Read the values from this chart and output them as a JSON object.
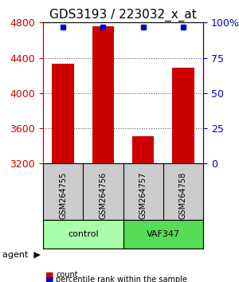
{
  "title": "GDS3193 / 223032_x_at",
  "samples": [
    "GSM264755",
    "GSM264756",
    "GSM264757",
    "GSM264758"
  ],
  "counts": [
    4330,
    4760,
    3510,
    4290
  ],
  "percentiles": [
    99,
    99,
    99,
    99
  ],
  "ylim": [
    3200,
    4800
  ],
  "yticks_left": [
    3200,
    3600,
    4000,
    4400,
    4800
  ],
  "yticks_right": [
    0,
    25,
    50,
    75,
    100
  ],
  "bar_color": "#cc0000",
  "dot_color": "#0000cc",
  "groups": [
    {
      "label": "control",
      "samples": [
        0,
        1
      ],
      "color": "#aaffaa"
    },
    {
      "label": "VAF347",
      "samples": [
        2,
        3
      ],
      "color": "#55dd55"
    }
  ],
  "agent_label": "agent",
  "legend_count_color": "#cc0000",
  "legend_pct_color": "#0000cc",
  "sample_box_color": "#cccccc",
  "grid_color": "#555555",
  "title_fontsize": 11,
  "tick_fontsize": 9,
  "bar_width": 0.55
}
